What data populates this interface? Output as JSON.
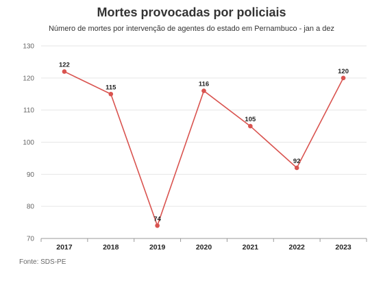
{
  "title": "Mortes provocadas por policiais",
  "subtitle": "Número de mortes por intervenção de agentes do estado em Pernambuco - jan a dez",
  "source": "Fonte: SDS-PE",
  "colors": {
    "line": "#d9534f",
    "grid": "#e6e6e6",
    "axis": "#999999"
  },
  "chart_data": {
    "type": "line",
    "title": "Mortes provocadas por policiais",
    "subtitle": "Número de mortes por intervenção de agentes do estado em Pernambuco - jan a dez",
    "categories": [
      "2017",
      "2018",
      "2019",
      "2020",
      "2021",
      "2022",
      "2023"
    ],
    "values": [
      122,
      115,
      74,
      116,
      105,
      92,
      120
    ],
    "ylim": [
      70,
      130
    ],
    "yticks": [
      70,
      80,
      90,
      100,
      110,
      120,
      130
    ],
    "grid": true,
    "legend": "none",
    "data_labels": true
  }
}
